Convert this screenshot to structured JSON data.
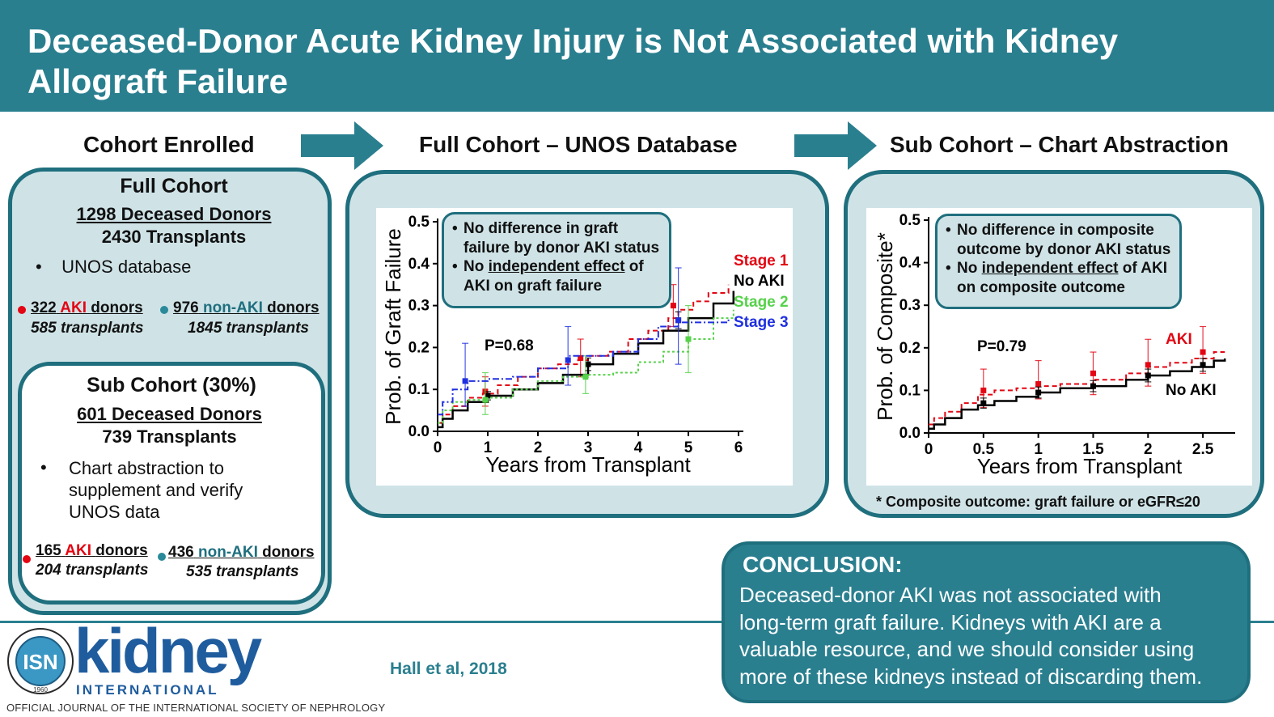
{
  "title": "Deceased-Donor Acute Kidney Injury is Not Associated with Kidney Allograft Failure",
  "sections": {
    "enrolled": "Cohort Enrolled",
    "full": "Full Cohort – UNOS Database",
    "sub": "Sub Cohort – Chart Abstraction"
  },
  "full_cohort": {
    "title": "Full Cohort",
    "donors": "1298 Deceased Donors",
    "transplants": "2430 Transplants",
    "bullet": "UNOS database",
    "aki_num": "322",
    "aki_word": "AKI",
    "donors_word": "donors",
    "aki_tx": "585 transplants",
    "nonaki_num": "976",
    "nonaki_word": "non-AKI",
    "nonaki_tx": "1845 transplants"
  },
  "sub_cohort": {
    "title": "Sub Cohort (30%)",
    "donors": "601 Deceased Donors",
    "transplants": "739 Transplants",
    "bullet_l1": "Chart abstraction to",
    "bullet_l2": "supplement and verify",
    "bullet_l3": "UNOS data",
    "aki_num": "165",
    "aki_word": "AKI",
    "donors_word": "donors",
    "aki_tx": "204 transplants",
    "nonaki_num": "436",
    "nonaki_word": "non-AKI",
    "nonaki_tx": "535 transplants"
  },
  "full_bubble": {
    "b1_l1": "No difference in graft",
    "b1_l2": "failure by donor AKI status",
    "b2_pre": "No ",
    "b2_u": "independent effect",
    "b2_post": " of",
    "b2_l2": "AKI on graft failure"
  },
  "sub_bubble": {
    "b1_l1": "No difference in composite",
    "b1_l2": "outcome by donor AKI status",
    "b2_pre": "No ",
    "b2_u": "independent effect",
    "b2_post": " of AKI",
    "b2_l2": "on composite outcome"
  },
  "footnote": "* Composite outcome: graft failure or eGFR≤20",
  "conclusion": {
    "heading": "CONCLUSION:",
    "l1": "Deceased-donor AKI was not associated with",
    "l2": "long-term graft failure. Kidneys with AKI are a",
    "l3": "valuable resource, and we should consider using",
    "l4": "more of these kidneys instead of discarding them."
  },
  "footer": {
    "isn": "ISN",
    "seal_top": "INTERNATIONAL SOCIETY OF NEPHROLOGY",
    "seal_year": "1960",
    "brand": "kidney",
    "brand_sub": "INTERNATIONAL",
    "journal": "OFFICIAL JOURNAL OF THE INTERNATIONAL SOCIETY OF NEPHROLOGY",
    "citation": "Hall et al, 2018"
  },
  "colors": {
    "teal": "#2a7f8f",
    "teal_dark": "#1f6f7e",
    "panel": "#cfe3e7",
    "red": "#e30613",
    "black": "#000000",
    "green": "#56d24a",
    "blue": "#2030e0"
  },
  "chart_data": [
    {
      "type": "line",
      "xlabel": "Years from Transplant",
      "ylabel": "Prob. of Graft Failure",
      "xlim": [
        0,
        6
      ],
      "ylim": [
        0,
        0.5
      ],
      "xticks": [
        "0",
        "1",
        "2",
        "3",
        "4",
        "5",
        "6"
      ],
      "yticks": [
        "0.0",
        "0.1",
        "0.2",
        "0.3",
        "0.4",
        "0.5"
      ],
      "annotation": "P=0.68",
      "series": [
        {
          "name": "Stage 1",
          "color": "#e30613",
          "dash": "6,4",
          "x": [
            0,
            0.1,
            0.3,
            0.6,
            0.9,
            1.2,
            1.6,
            2.0,
            2.4,
            2.8,
            3.0,
            3.4,
            3.8,
            4.2,
            4.6,
            4.8,
            5.1,
            5.4,
            5.8
          ],
          "y": [
            0.02,
            0.04,
            0.06,
            0.08,
            0.09,
            0.11,
            0.13,
            0.15,
            0.16,
            0.17,
            0.18,
            0.19,
            0.22,
            0.24,
            0.27,
            0.29,
            0.31,
            0.33,
            0.35
          ],
          "markers": [
            {
              "x": 0.95,
              "y": 0.095,
              "lo": 0.06,
              "hi": 0.13
            },
            {
              "x": 2.85,
              "y": 0.175,
              "lo": 0.13,
              "hi": 0.22
            },
            {
              "x": 4.7,
              "y": 0.3,
              "lo": 0.25,
              "hi": 0.35
            }
          ]
        },
        {
          "name": "No AKI",
          "color": "#000000",
          "dash": "",
          "x": [
            0,
            0.1,
            0.3,
            0.6,
            1.0,
            1.5,
            2.0,
            2.5,
            3.0,
            3.5,
            4.0,
            4.5,
            5.0,
            5.5,
            5.9
          ],
          "y": [
            0.01,
            0.03,
            0.05,
            0.07,
            0.085,
            0.1,
            0.115,
            0.135,
            0.16,
            0.185,
            0.21,
            0.24,
            0.27,
            0.305,
            0.335
          ],
          "markers": [
            {
              "x": 1.0,
              "y": 0.085,
              "lo": 0.075,
              "hi": 0.095
            },
            {
              "x": 3.0,
              "y": 0.16,
              "lo": 0.145,
              "hi": 0.175
            },
            {
              "x": 4.8,
              "y": 0.265,
              "lo": 0.245,
              "hi": 0.285
            }
          ]
        },
        {
          "name": "Stage 2",
          "color": "#56d24a",
          "dash": "3,3",
          "x": [
            0,
            0.1,
            0.3,
            0.6,
            1.0,
            1.5,
            2.0,
            2.5,
            3.0,
            3.5,
            4.0,
            4.5,
            5.0,
            5.5,
            5.9
          ],
          "y": [
            0.02,
            0.05,
            0.07,
            0.075,
            0.08,
            0.1,
            0.12,
            0.13,
            0.135,
            0.14,
            0.165,
            0.19,
            0.22,
            0.27,
            0.29
          ],
          "markers": [
            {
              "x": 0.95,
              "y": 0.075,
              "lo": 0.04,
              "hi": 0.14
            },
            {
              "x": 2.95,
              "y": 0.13,
              "lo": 0.09,
              "hi": 0.18
            },
            {
              "x": 5.0,
              "y": 0.22,
              "lo": 0.14,
              "hi": 0.3
            }
          ]
        },
        {
          "name": "Stage 3",
          "color": "#2030e0",
          "dash": "8,3,2,3",
          "x": [
            0,
            0.1,
            0.3,
            0.6,
            1.0,
            1.5,
            2.0,
            2.6,
            3.0,
            3.5,
            4.0,
            4.4,
            4.8,
            5.2,
            5.8
          ],
          "y": [
            0.04,
            0.07,
            0.1,
            0.12,
            0.125,
            0.13,
            0.15,
            0.18,
            0.18,
            0.19,
            0.22,
            0.25,
            0.26,
            0.26,
            0.27
          ],
          "markers": [
            {
              "x": 0.55,
              "y": 0.12,
              "lo": 0.06,
              "hi": 0.21
            },
            {
              "x": 2.6,
              "y": 0.17,
              "lo": 0.11,
              "hi": 0.25
            },
            {
              "x": 4.8,
              "y": 0.265,
              "lo": 0.16,
              "hi": 0.39
            }
          ]
        }
      ],
      "labels": [
        "Stage 1",
        "No AKI",
        "Stage 2",
        "Stage 3"
      ]
    },
    {
      "type": "line",
      "xlabel": "Years from Transplant",
      "ylabel": "Prob. of Composite*",
      "xlim": [
        0,
        2.75
      ],
      "ylim": [
        0,
        0.5
      ],
      "xticks": [
        "0",
        "0.5",
        "1",
        "1.5",
        "2",
        "2.5"
      ],
      "yticks": [
        "0.0",
        "0.1",
        "0.2",
        "0.3",
        "0.4",
        "0.5"
      ],
      "annotation": "P=0.79",
      "series": [
        {
          "name": "AKI",
          "color": "#e30613",
          "dash": "6,4",
          "x": [
            0,
            0.05,
            0.15,
            0.3,
            0.45,
            0.6,
            0.8,
            1.0,
            1.2,
            1.5,
            1.8,
            2.0,
            2.2,
            2.4,
            2.6,
            2.7
          ],
          "y": [
            0.02,
            0.035,
            0.05,
            0.07,
            0.09,
            0.1,
            0.105,
            0.11,
            0.115,
            0.125,
            0.14,
            0.155,
            0.165,
            0.175,
            0.19,
            0.19
          ],
          "markers": [
            {
              "x": 0.5,
              "y": 0.1,
              "lo": 0.06,
              "hi": 0.15
            },
            {
              "x": 1.0,
              "y": 0.115,
              "lo": 0.08,
              "hi": 0.17
            },
            {
              "x": 1.5,
              "y": 0.14,
              "lo": 0.09,
              "hi": 0.19
            },
            {
              "x": 2.0,
              "y": 0.16,
              "lo": 0.11,
              "hi": 0.22
            },
            {
              "x": 2.5,
              "y": 0.19,
              "lo": 0.14,
              "hi": 0.25
            }
          ]
        },
        {
          "name": "No AKI",
          "color": "#000000",
          "dash": "",
          "x": [
            0,
            0.05,
            0.15,
            0.3,
            0.45,
            0.6,
            0.8,
            1.0,
            1.2,
            1.5,
            1.8,
            2.0,
            2.2,
            2.4,
            2.6,
            2.7
          ],
          "y": [
            0.01,
            0.02,
            0.035,
            0.055,
            0.065,
            0.075,
            0.085,
            0.095,
            0.105,
            0.11,
            0.125,
            0.135,
            0.145,
            0.155,
            0.17,
            0.175
          ],
          "markers": [
            {
              "x": 0.5,
              "y": 0.07,
              "lo": 0.058,
              "hi": 0.082
            },
            {
              "x": 1.0,
              "y": 0.095,
              "lo": 0.082,
              "hi": 0.108
            },
            {
              "x": 1.5,
              "y": 0.11,
              "lo": 0.097,
              "hi": 0.123
            },
            {
              "x": 2.0,
              "y": 0.135,
              "lo": 0.12,
              "hi": 0.15
            },
            {
              "x": 2.5,
              "y": 0.16,
              "lo": 0.145,
              "hi": 0.175
            }
          ]
        }
      ],
      "labels": [
        "AKI",
        "No AKI"
      ]
    }
  ]
}
